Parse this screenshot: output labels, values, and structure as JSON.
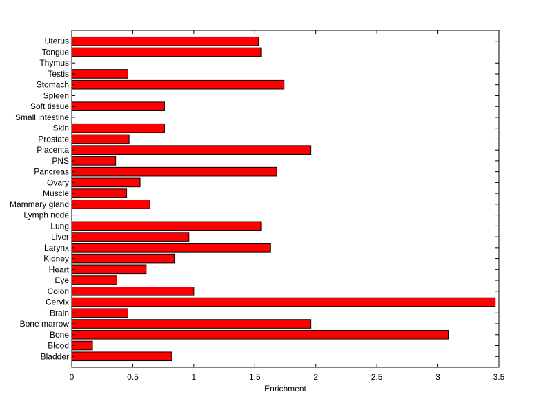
{
  "chart_data": {
    "type": "bar",
    "orientation": "horizontal",
    "title": "",
    "xlabel": "Enrichment",
    "ylabel": "",
    "xlim": [
      0,
      3.5
    ],
    "xticks": [
      0,
      0.5,
      1,
      1.5,
      2,
      2.5,
      3,
      3.5
    ],
    "xtick_labels": [
      "0",
      "0.5",
      "1",
      "1.5",
      "2",
      "2.5",
      "3",
      "3.5"
    ],
    "categories": [
      "Bladder",
      "Blood",
      "Bone",
      "Bone marrow",
      "Brain",
      "Cervix",
      "Colon",
      "Eye",
      "Heart",
      "Kidney",
      "Larynx",
      "Liver",
      "Lung",
      "Lymph node",
      "Mammary gland",
      "Muscle",
      "Ovary",
      "Pancreas",
      "PNS",
      "Placenta",
      "Prostate",
      "Skin",
      "Small intestine",
      "Soft tissue",
      "Spleen",
      "Stomach",
      "Testis",
      "Thymus",
      "Tongue",
      "Uterus"
    ],
    "values": [
      0.82,
      0.17,
      3.09,
      1.96,
      0.46,
      3.47,
      1.0,
      0.37,
      0.61,
      0.84,
      1.63,
      0.96,
      1.55,
      0,
      0.64,
      0.45,
      0.56,
      1.68,
      0.36,
      1.96,
      0.47,
      0.76,
      0,
      0.76,
      0,
      1.74,
      0.46,
      0,
      1.55,
      1.53
    ],
    "bar_color": "#ff0000",
    "grid": false,
    "legend": "none"
  }
}
